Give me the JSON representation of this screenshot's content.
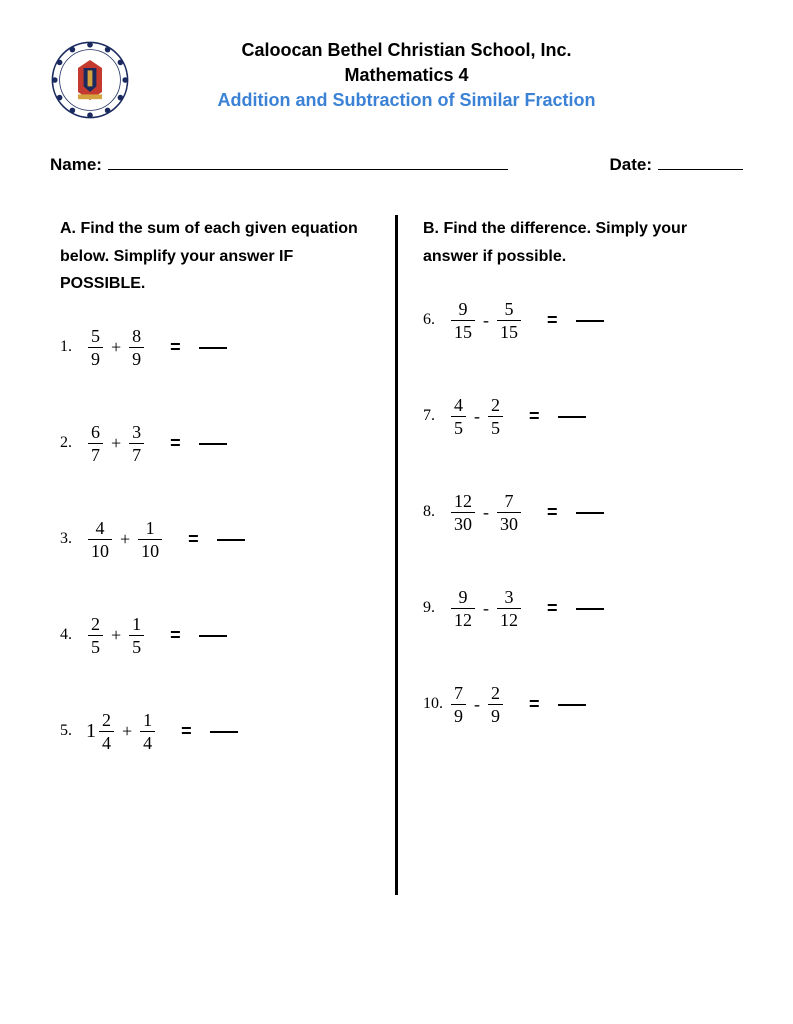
{
  "header": {
    "school_name": "Caloocan Bethel Christian School, Inc.",
    "subject": "Mathematics 4",
    "topic": "Addition and Subtraction of Similar Fraction",
    "topic_color": "#3b82d6"
  },
  "labels": {
    "name": "Name:",
    "date": "Date:"
  },
  "section_a": {
    "heading": "A. Find the sum of each given equation below. Simplify your answer IF POSSIBLE.",
    "operator": "+",
    "problems": [
      {
        "n": "1.",
        "whole1": "",
        "num1": "5",
        "den1": "9",
        "num2": "8",
        "den2": "9"
      },
      {
        "n": "2.",
        "whole1": "",
        "num1": "6",
        "den1": "7",
        "num2": "3",
        "den2": "7"
      },
      {
        "n": "3.",
        "whole1": "",
        "num1": "4",
        "den1": "10",
        "num2": "1",
        "den2": "10"
      },
      {
        "n": "4.",
        "whole1": "",
        "num1": "2",
        "den1": "5",
        "num2": "1",
        "den2": "5"
      },
      {
        "n": "5.",
        "whole1": "1",
        "num1": "2",
        "den1": "4",
        "num2": "1",
        "den2": "4"
      }
    ]
  },
  "section_b": {
    "heading": "B. Find the difference. Simply your answer if possible.",
    "operator": "-",
    "problems": [
      {
        "n": "6.",
        "num1": "9",
        "den1": "15",
        "num2": "5",
        "den2": "15"
      },
      {
        "n": "7.",
        "num1": "4",
        "den1": "5",
        "num2": "2",
        "den2": "5"
      },
      {
        "n": "8.",
        "num1": "12",
        "den1": "30",
        "num2": "7",
        "den2": "30"
      },
      {
        "n": "9.",
        "num1": "9",
        "den1": "12",
        "num2": "3",
        "den2": "12"
      },
      {
        "n": "10.",
        "num1": "7",
        "den1": "9",
        "num2": "2",
        "den2": "9"
      }
    ]
  },
  "style": {
    "page_bg": "#ffffff",
    "text_color": "#000000",
    "body_font": "Comic Sans MS",
    "math_font": "Cambria Math",
    "heading_fontsize": 18,
    "body_fontsize": 16,
    "divider_color": "#000000",
    "divider_width": 3
  }
}
